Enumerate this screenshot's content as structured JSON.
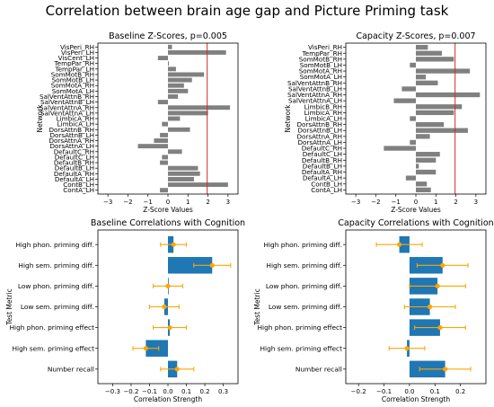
{
  "figure": {
    "title": "Correlation between brain age gap and Picture Priming task",
    "colors": {
      "gray_bar": "#808080",
      "blue_bar": "#1f77b4",
      "orange": "#ffa500",
      "red_line": "#d62728"
    }
  },
  "chart_data": [
    {
      "type": "bar",
      "orientation": "horizontal",
      "title": "Baseline Z-Scores, p=0.005",
      "xlabel": "Z-Score Values",
      "ylabel": "Network",
      "xlim": [
        -3.5,
        3.5
      ],
      "xticks": [
        -3,
        -2,
        -1,
        0,
        1,
        2,
        3
      ],
      "threshold_line": 1.96,
      "categories": [
        "VisPeri_RH",
        "VisPeri_LH",
        "VisCent_LH",
        "TempPar_RH",
        "TempPar_LH",
        "SomMotB_RH",
        "SomMotB_LH",
        "SomMotA_RH",
        "SomMotA_LH",
        "SalVentAttnB_RH",
        "SalVentAttnB_LH",
        "SalVentAttnA_RH",
        "SalVentAttnA_LH",
        "LimbicA_RH",
        "LimbicA_LH",
        "DorsAttnB_RH",
        "DorsAttnB_LH",
        "DorsAttnA_RH",
        "DorsAttnA_LH",
        "DefaultC_RH",
        "DefaultC_LH",
        "DefaultB_RH",
        "DefaultB_LH",
        "DefaultA_RH",
        "DefaultA_LH",
        "ContB_LH",
        "ContA_LH"
      ],
      "values": [
        0.2,
        2.9,
        -0.5,
        0.05,
        0.4,
        1.8,
        1.2,
        0.8,
        1.0,
        0.5,
        -0.5,
        3.1,
        2.0,
        0.6,
        -0.3,
        1.1,
        -0.4,
        -0.7,
        -1.5,
        0.7,
        -0.3,
        -0.4,
        1.5,
        1.6,
        1.3,
        3.0,
        -0.4
      ]
    },
    {
      "type": "bar",
      "orientation": "horizontal",
      "title": "Capacity Z-Scores, p=0.007",
      "xlabel": "Z-Score Values",
      "ylabel": "Network",
      "xlim": [
        -3.5,
        3.5
      ],
      "xticks": [
        -3,
        -2,
        -1,
        0,
        1,
        2,
        3
      ],
      "threshold_line": 1.96,
      "categories": [
        "VisPeri_RH",
        "TempPar_RH",
        "SomMotB_RH",
        "SomMotB_LH",
        "SomMotA_RH",
        "SomMotA_LH",
        "SalVentAttnB_RH",
        "SalVentAttnB_LH",
        "SalVentAttnA_RH",
        "SalVentAttnA_LH",
        "LimbicB_RH",
        "LimbicA_RH",
        "LimbicA_LH",
        "DorsAttnB_RH",
        "DorsAttnB_LH",
        "DorsAttnA_RH",
        "DorsAttnA_LH",
        "DefaultC_RH",
        "DefaultC_LH",
        "DefaultB_RH",
        "DefaultB_LH",
        "DefaultA_RH",
        "DefaultA_LH",
        "ContB_LH",
        "ContA_LH"
      ],
      "values": [
        0.6,
        1.3,
        1.9,
        -0.3,
        2.7,
        0.5,
        1.1,
        -0.7,
        3.2,
        -1.1,
        2.3,
        1.9,
        -0.3,
        1.4,
        2.6,
        0.7,
        -0.3,
        -1.6,
        1.2,
        1.0,
        0.15,
        1.0,
        -0.5,
        0.55,
        0.75
      ]
    },
    {
      "type": "bar",
      "orientation": "horizontal",
      "title": "Baseline Correlations with Cognition",
      "xlabel": "Correlation Strength",
      "ylabel": "Test Metric",
      "xlim": [
        -0.38,
        0.38
      ],
      "xticks": [
        -0.3,
        -0.2,
        -0.1,
        0.0,
        0.1,
        0.2,
        0.3
      ],
      "tick_labels": [
        "−0.3",
        "−0.2",
        "−0.1",
        "0.0",
        "0.1",
        "0.2",
        "0.3"
      ],
      "categories": [
        "High phon. priming diff.",
        "High sem. priming diff.",
        "Low phon. priming diff.",
        "Low sem. priming diff.",
        "High phon. priming effect",
        "High sem. priming effect",
        "Number recall"
      ],
      "values": [
        0.03,
        0.24,
        0.0,
        -0.02,
        0.01,
        -0.12,
        0.05
      ],
      "error": [
        0.07,
        0.1,
        0.08,
        0.08,
        0.09,
        0.07,
        0.09
      ]
    },
    {
      "type": "bar",
      "orientation": "horizontal",
      "title": "Capacity Correlations with Cognition",
      "xlabel": "Correlation Strength",
      "ylabel": "Test Metric",
      "xlim": [
        -0.25,
        0.3
      ],
      "xticks": [
        -0.2,
        -0.1,
        0.0,
        0.1,
        0.2
      ],
      "tick_labels": [
        "−0.2",
        "−0.1",
        "0.0",
        "0.1",
        "0.2"
      ],
      "categories": [
        "High phon. priming diff.",
        "High sem. priming diff.",
        "Low phon. priming diff.",
        "Low sem. priming diff.",
        "High phon. priming effect",
        "High sem. priming effect",
        "Number recall"
      ],
      "values": [
        -0.04,
        0.13,
        0.11,
        0.08,
        0.12,
        -0.01,
        0.14
      ],
      "error": [
        0.09,
        0.1,
        0.11,
        0.1,
        0.1,
        0.07,
        0.1
      ]
    }
  ]
}
